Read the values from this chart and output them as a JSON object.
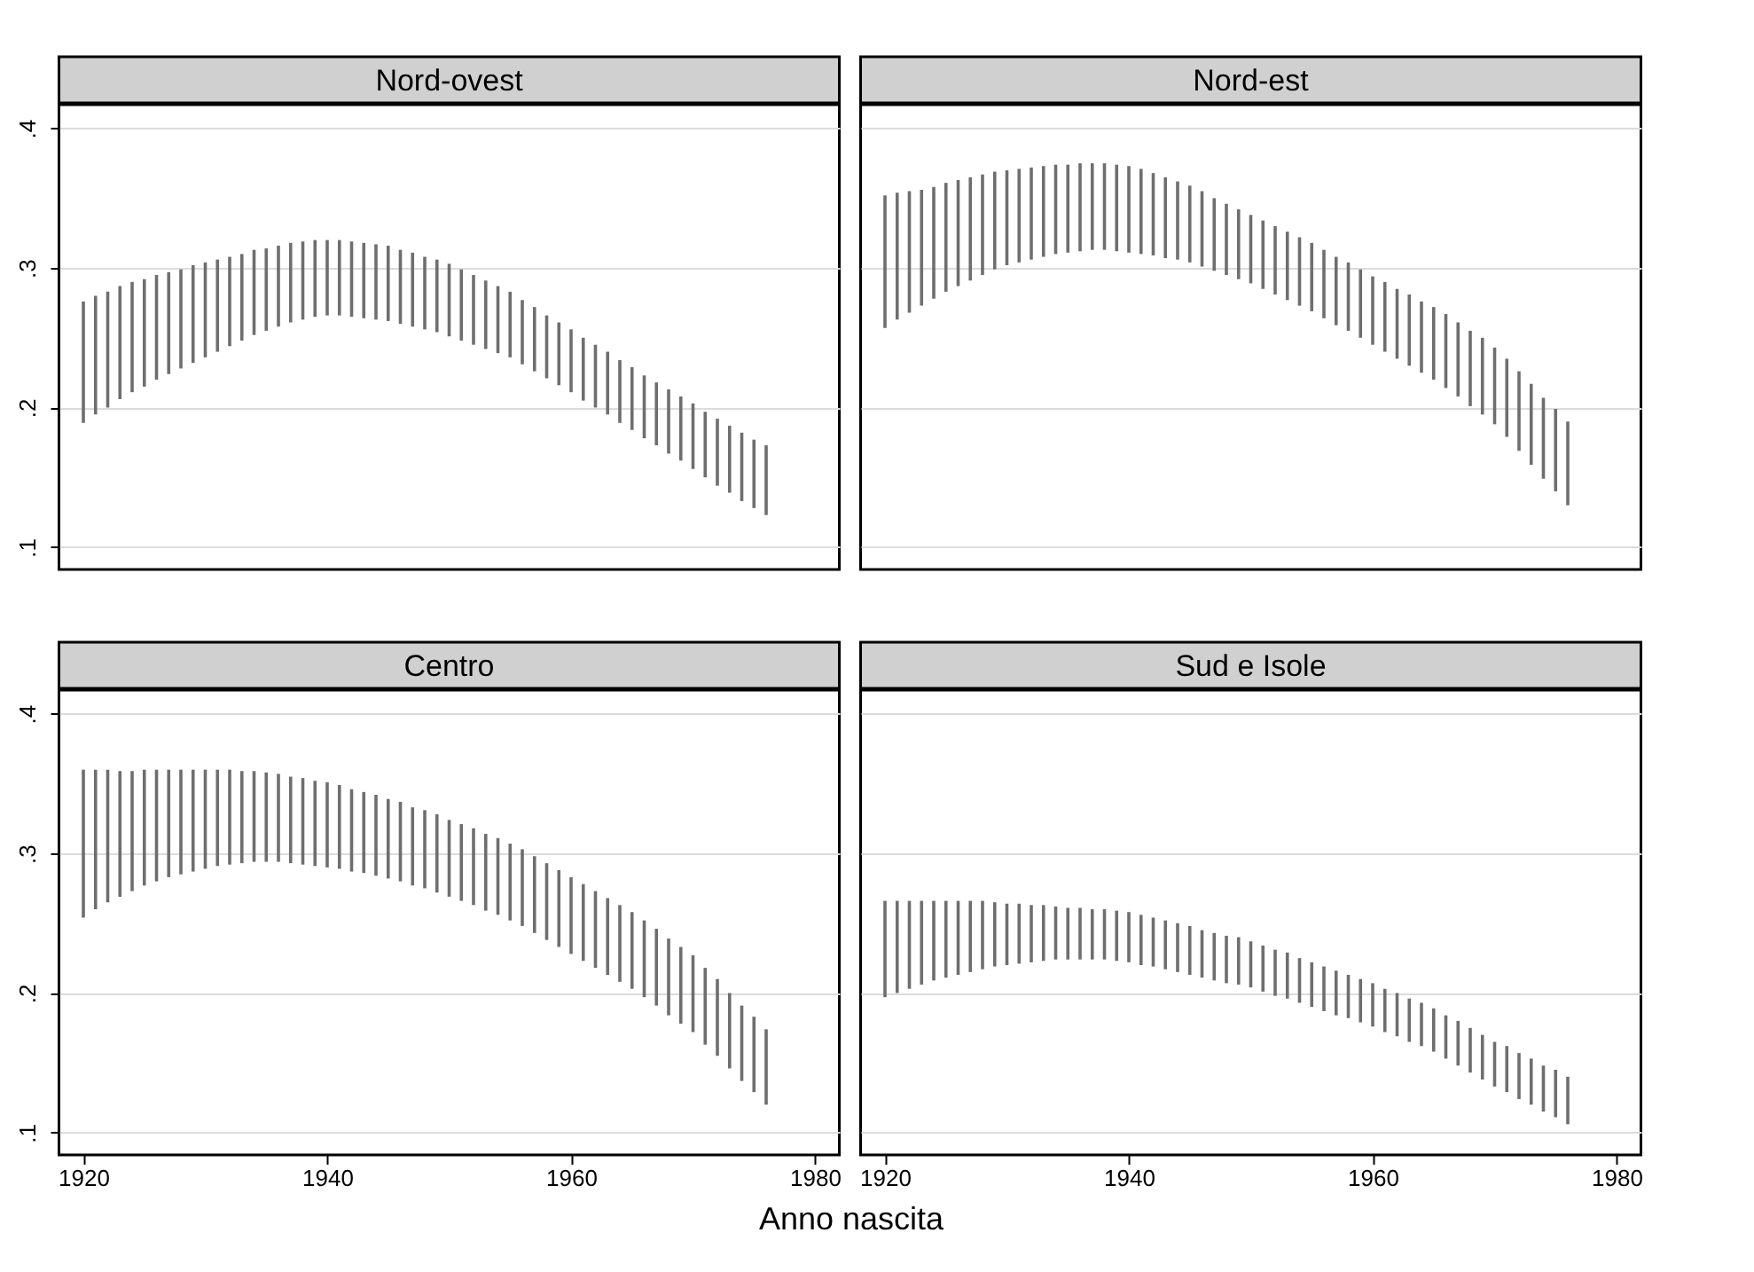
{
  "chart_data": [
    {
      "type": "bar",
      "title": "Nord-ovest",
      "color": "#6e6e6e",
      "grid": "y",
      "tick_labels": "y",
      "x": [
        1920,
        1921,
        1922,
        1923,
        1924,
        1925,
        1926,
        1927,
        1928,
        1929,
        1930,
        1931,
        1932,
        1933,
        1934,
        1935,
        1936,
        1937,
        1938,
        1939,
        1940,
        1941,
        1942,
        1943,
        1944,
        1945,
        1946,
        1947,
        1948,
        1949,
        1950,
        1951,
        1952,
        1953,
        1954,
        1955,
        1956,
        1957,
        1958,
        1959,
        1960,
        1961,
        1962,
        1963,
        1964,
        1965,
        1966,
        1967,
        1968,
        1969,
        1970,
        1971,
        1972,
        1973,
        1974,
        1975,
        1976
      ],
      "base": [
        0.189,
        0.195,
        0.2,
        0.206,
        0.211,
        0.215,
        0.22,
        0.224,
        0.228,
        0.232,
        0.236,
        0.24,
        0.244,
        0.248,
        0.252,
        0.255,
        0.258,
        0.261,
        0.263,
        0.265,
        0.266,
        0.266,
        0.265,
        0.264,
        0.263,
        0.262,
        0.26,
        0.258,
        0.256,
        0.254,
        0.251,
        0.248,
        0.245,
        0.242,
        0.239,
        0.236,
        0.231,
        0.226,
        0.221,
        0.216,
        0.211,
        0.205,
        0.2,
        0.195,
        0.189,
        0.184,
        0.178,
        0.173,
        0.167,
        0.162,
        0.156,
        0.15,
        0.144,
        0.139,
        0.133,
        0.128,
        0.123
      ],
      "values": [
        0.087,
        0.085,
        0.083,
        0.081,
        0.079,
        0.077,
        0.075,
        0.073,
        0.071,
        0.07,
        0.068,
        0.066,
        0.064,
        0.062,
        0.061,
        0.059,
        0.058,
        0.057,
        0.056,
        0.055,
        0.054,
        0.054,
        0.054,
        0.054,
        0.054,
        0.054,
        0.053,
        0.053,
        0.052,
        0.052,
        0.052,
        0.051,
        0.05,
        0.049,
        0.048,
        0.047,
        0.046,
        0.046,
        0.045,
        0.045,
        0.045,
        0.045,
        0.045,
        0.045,
        0.045,
        0.045,
        0.045,
        0.045,
        0.046,
        0.046,
        0.047,
        0.047,
        0.048,
        0.048,
        0.049,
        0.049,
        0.05
      ],
      "xlim": [
        1918,
        1982
      ],
      "xticks": [
        1920,
        1940,
        1960,
        1980
      ],
      "ylim": [
        0.084,
        0.417
      ],
      "yticks": [
        {
          "value": 0.1,
          "label": ".1"
        },
        {
          "value": 0.2,
          "label": ".2"
        },
        {
          "value": 0.3,
          "label": ".3"
        },
        {
          "value": 0.4,
          "label": ".4"
        }
      ]
    },
    {
      "type": "bar",
      "title": "Nord-est",
      "color": "#6e6e6e",
      "grid": "y",
      "tick_labels": false,
      "x": [
        1920,
        1921,
        1922,
        1923,
        1924,
        1925,
        1926,
        1927,
        1928,
        1929,
        1930,
        1931,
        1932,
        1933,
        1934,
        1935,
        1936,
        1937,
        1938,
        1939,
        1940,
        1941,
        1942,
        1943,
        1944,
        1945,
        1946,
        1947,
        1948,
        1949,
        1950,
        1951,
        1952,
        1953,
        1954,
        1955,
        1956,
        1957,
        1958,
        1959,
        1960,
        1961,
        1962,
        1963,
        1964,
        1965,
        1966,
        1967,
        1968,
        1969,
        1970,
        1971,
        1972,
        1973,
        1974,
        1975,
        1976
      ],
      "base": [
        0.257,
        0.263,
        0.268,
        0.273,
        0.278,
        0.283,
        0.287,
        0.291,
        0.295,
        0.299,
        0.302,
        0.304,
        0.306,
        0.308,
        0.31,
        0.311,
        0.312,
        0.313,
        0.313,
        0.312,
        0.311,
        0.31,
        0.309,
        0.307,
        0.306,
        0.304,
        0.301,
        0.298,
        0.295,
        0.292,
        0.289,
        0.285,
        0.281,
        0.277,
        0.273,
        0.269,
        0.264,
        0.259,
        0.255,
        0.25,
        0.245,
        0.24,
        0.235,
        0.23,
        0.225,
        0.22,
        0.214,
        0.208,
        0.201,
        0.195,
        0.188,
        0.179,
        0.169,
        0.159,
        0.149,
        0.14,
        0.13
      ],
      "values": [
        0.095,
        0.091,
        0.087,
        0.083,
        0.08,
        0.078,
        0.076,
        0.074,
        0.072,
        0.07,
        0.068,
        0.067,
        0.066,
        0.065,
        0.064,
        0.063,
        0.063,
        0.062,
        0.062,
        0.062,
        0.062,
        0.061,
        0.059,
        0.058,
        0.056,
        0.055,
        0.054,
        0.052,
        0.051,
        0.05,
        0.049,
        0.049,
        0.049,
        0.049,
        0.049,
        0.049,
        0.049,
        0.049,
        0.049,
        0.049,
        0.049,
        0.05,
        0.05,
        0.051,
        0.051,
        0.052,
        0.053,
        0.053,
        0.054,
        0.055,
        0.055,
        0.056,
        0.057,
        0.058,
        0.058,
        0.059,
        0.06
      ],
      "xlim": [
        1918,
        1982
      ],
      "xticks": [
        1920,
        1940,
        1960,
        1980
      ],
      "ylim": [
        0.084,
        0.417
      ],
      "yticks": [
        0.1,
        0.2,
        0.3,
        0.4
      ]
    },
    {
      "type": "bar",
      "title": "Centro",
      "xlabel": "Anno nascita",
      "color": "#6e6e6e",
      "grid": "y",
      "x": [
        1920,
        1921,
        1922,
        1923,
        1924,
        1925,
        1926,
        1927,
        1928,
        1929,
        1930,
        1931,
        1932,
        1933,
        1934,
        1935,
        1936,
        1937,
        1938,
        1939,
        1940,
        1941,
        1942,
        1943,
        1944,
        1945,
        1946,
        1947,
        1948,
        1949,
        1950,
        1951,
        1952,
        1953,
        1954,
        1955,
        1956,
        1957,
        1958,
        1959,
        1960,
        1961,
        1962,
        1963,
        1964,
        1965,
        1966,
        1967,
        1968,
        1969,
        1970,
        1971,
        1972,
        1973,
        1974,
        1975,
        1976
      ],
      "base": [
        0.254,
        0.26,
        0.265,
        0.269,
        0.273,
        0.277,
        0.28,
        0.283,
        0.285,
        0.287,
        0.289,
        0.291,
        0.292,
        0.293,
        0.294,
        0.294,
        0.294,
        0.293,
        0.292,
        0.291,
        0.29,
        0.289,
        0.287,
        0.286,
        0.284,
        0.282,
        0.28,
        0.277,
        0.275,
        0.272,
        0.269,
        0.266,
        0.263,
        0.259,
        0.256,
        0.252,
        0.248,
        0.243,
        0.238,
        0.233,
        0.228,
        0.223,
        0.218,
        0.213,
        0.208,
        0.203,
        0.197,
        0.191,
        0.184,
        0.178,
        0.172,
        0.163,
        0.155,
        0.146,
        0.137,
        0.129,
        0.12
      ],
      "values": [
        0.106,
        0.1,
        0.095,
        0.09,
        0.086,
        0.083,
        0.08,
        0.077,
        0.075,
        0.073,
        0.071,
        0.069,
        0.068,
        0.066,
        0.065,
        0.064,
        0.063,
        0.062,
        0.062,
        0.061,
        0.061,
        0.06,
        0.059,
        0.058,
        0.058,
        0.057,
        0.057,
        0.056,
        0.056,
        0.056,
        0.055,
        0.055,
        0.055,
        0.055,
        0.055,
        0.055,
        0.055,
        0.055,
        0.055,
        0.055,
        0.055,
        0.055,
        0.055,
        0.055,
        0.055,
        0.055,
        0.055,
        0.055,
        0.055,
        0.055,
        0.055,
        0.055,
        0.055,
        0.054,
        0.054,
        0.054,
        0.054
      ],
      "xlim": [
        1918,
        1982
      ],
      "xticks": [
        1920,
        1940,
        1960,
        1980
      ],
      "ylim": [
        0.084,
        0.417
      ],
      "yticks": [
        {
          "value": 0.1,
          "label": ".1"
        },
        {
          "value": 0.2,
          "label": ".2"
        },
        {
          "value": 0.3,
          "label": ".3"
        },
        {
          "value": 0.4,
          "label": ".4"
        }
      ]
    },
    {
      "type": "bar",
      "title": "Sud e Isole",
      "color": "#6e6e6e",
      "grid": "y",
      "tick_labels": "x",
      "x": [
        1920,
        1921,
        1922,
        1923,
        1924,
        1925,
        1926,
        1927,
        1928,
        1929,
        1930,
        1931,
        1932,
        1933,
        1934,
        1935,
        1936,
        1937,
        1938,
        1939,
        1940,
        1941,
        1942,
        1943,
        1944,
        1945,
        1946,
        1947,
        1948,
        1949,
        1950,
        1951,
        1952,
        1953,
        1954,
        1955,
        1956,
        1957,
        1958,
        1959,
        1960,
        1961,
        1962,
        1963,
        1964,
        1965,
        1966,
        1967,
        1968,
        1969,
        1970,
        1971,
        1972,
        1973,
        1974,
        1975,
        1976
      ],
      "base": [
        0.197,
        0.2,
        0.203,
        0.206,
        0.209,
        0.211,
        0.213,
        0.215,
        0.217,
        0.219,
        0.22,
        0.221,
        0.222,
        0.223,
        0.224,
        0.224,
        0.224,
        0.224,
        0.224,
        0.223,
        0.222,
        0.22,
        0.219,
        0.217,
        0.215,
        0.213,
        0.211,
        0.209,
        0.207,
        0.206,
        0.204,
        0.201,
        0.198,
        0.196,
        0.193,
        0.19,
        0.187,
        0.184,
        0.182,
        0.179,
        0.176,
        0.172,
        0.169,
        0.165,
        0.162,
        0.158,
        0.153,
        0.148,
        0.143,
        0.138,
        0.133,
        0.129,
        0.124,
        0.12,
        0.115,
        0.111,
        0.106
      ],
      "values": [
        0.069,
        0.066,
        0.063,
        0.06,
        0.057,
        0.055,
        0.053,
        0.051,
        0.049,
        0.046,
        0.044,
        0.043,
        0.041,
        0.04,
        0.038,
        0.037,
        0.037,
        0.036,
        0.036,
        0.036,
        0.036,
        0.036,
        0.035,
        0.035,
        0.035,
        0.035,
        0.034,
        0.034,
        0.034,
        0.034,
        0.033,
        0.033,
        0.033,
        0.033,
        0.032,
        0.032,
        0.032,
        0.032,
        0.031,
        0.031,
        0.031,
        0.031,
        0.031,
        0.031,
        0.031,
        0.031,
        0.031,
        0.032,
        0.032,
        0.032,
        0.032,
        0.033,
        0.033,
        0.033,
        0.033,
        0.034,
        0.034
      ],
      "xlim": [
        1918,
        1982
      ],
      "xticks": [
        1920,
        1940,
        1960,
        1980
      ],
      "ylim": [
        0.084,
        0.417
      ],
      "yticks": [
        0.1,
        0.2,
        0.3,
        0.4
      ]
    }
  ]
}
